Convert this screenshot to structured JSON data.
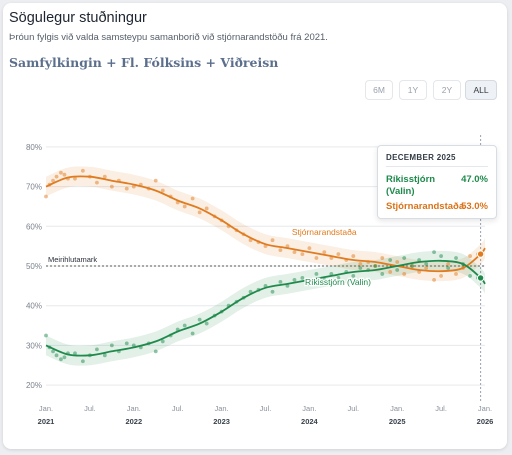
{
  "header": {
    "title": "Sögulegur stuðningur",
    "subtitle": "Þróun fylgis við valda samsteypu samanborið við stjórnarandstöðu frá 2021.",
    "coalition": "Samfylkingin + Fl. Fólksins + Viðreisn"
  },
  "range_buttons": [
    {
      "label": "6M",
      "active": false
    },
    {
      "label": "1Y",
      "active": false
    },
    {
      "label": "2Y",
      "active": false
    },
    {
      "label": "ALL",
      "active": true
    }
  ],
  "tooltip": {
    "date": "DECEMBER 2025",
    "government_label": "Ríkisstjórn (Valin)",
    "government_value": "47.0%",
    "opposition_label": "Stjórnarandstaða",
    "opposition_value": "53.0%"
  },
  "colors": {
    "government": "#1f8a4c",
    "opposition": "#e07b1f",
    "grid": "#e6e9ed",
    "majority_line": "#555555"
  },
  "chart_data": {
    "type": "line",
    "ylim": [
      17,
      83
    ],
    "xlim": [
      2021.0,
      2026.0
    ],
    "grid": true,
    "y_ticks": [
      "20%",
      "30%",
      "40%",
      "50%",
      "60%",
      "70%",
      "80%"
    ],
    "y_tick_values": [
      20,
      30,
      40,
      50,
      60,
      70,
      80
    ],
    "x_ticks": [
      {
        "label": "Jan.",
        "year": "2021",
        "x": 2021.0
      },
      {
        "label": "Jul.",
        "year": "",
        "x": 2021.5
      },
      {
        "label": "Jan.",
        "year": "2022",
        "x": 2022.0
      },
      {
        "label": "Jul.",
        "year": "",
        "x": 2022.5
      },
      {
        "label": "Jan.",
        "year": "2023",
        "x": 2023.0
      },
      {
        "label": "Jul.",
        "year": "",
        "x": 2023.5
      },
      {
        "label": "Jan.",
        "year": "2024",
        "x": 2024.0
      },
      {
        "label": "Jul.",
        "year": "",
        "x": 2024.5
      },
      {
        "label": "Jan.",
        "year": "2025",
        "x": 2025.0
      },
      {
        "label": "Jul.",
        "year": "",
        "x": 2025.5
      },
      {
        "label": "Jan.",
        "year": "2026",
        "x": 2026.0
      }
    ],
    "reference_line": {
      "y": 50,
      "label": "Meirihlutamark"
    },
    "highlight_x": 2025.95,
    "band_halfwidth": 2.5,
    "series": [
      {
        "name": "Stjórnarandstaða",
        "color": "#e07b1f",
        "x": [
          2021.0,
          2021.25,
          2021.5,
          2021.75,
          2022.0,
          2022.25,
          2022.5,
          2022.75,
          2023.0,
          2023.25,
          2023.5,
          2023.75,
          2024.0,
          2024.25,
          2024.5,
          2024.75,
          2025.0,
          2025.25,
          2025.5,
          2025.75,
          2025.95,
          2026.0
        ],
        "y": [
          70.0,
          72.3,
          72.5,
          71.5,
          70.5,
          69.0,
          66.5,
          64.5,
          61.5,
          58.0,
          55.5,
          54.5,
          53.5,
          52.5,
          51.5,
          51.0,
          50.0,
          49.0,
          48.7,
          49.5,
          53.0,
          54.5
        ],
        "points_x": [
          2021.0,
          2021.04,
          2021.08,
          2021.12,
          2021.17,
          2021.21,
          2021.25,
          2021.33,
          2021.42,
          2021.5,
          2021.58,
          2021.67,
          2021.75,
          2021.83,
          2021.92,
          2022.0,
          2022.08,
          2022.17,
          2022.25,
          2022.33,
          2022.42,
          2022.5,
          2022.58,
          2022.67,
          2022.75,
          2022.83,
          2022.92,
          2023.0,
          2023.08,
          2023.17,
          2023.25,
          2023.33,
          2023.42,
          2023.5,
          2023.58,
          2023.67,
          2023.75,
          2023.83,
          2023.92,
          2024.0,
          2024.08,
          2024.17,
          2024.25,
          2024.33,
          2024.42,
          2024.5,
          2024.58,
          2024.67,
          2024.75,
          2024.83,
          2024.92,
          2025.0,
          2025.08,
          2025.17,
          2025.25,
          2025.33,
          2025.42,
          2025.5,
          2025.58,
          2025.67,
          2025.75,
          2025.83,
          2025.92
        ],
        "points_y": [
          67.5,
          70.5,
          71.5,
          72.5,
          73.5,
          73.0,
          72.0,
          72.0,
          74.0,
          72.5,
          71.0,
          72.5,
          70.0,
          71.5,
          69.5,
          70.0,
          70.5,
          69.5,
          71.5,
          69.0,
          67.5,
          66.0,
          65.0,
          67.0,
          63.5,
          64.5,
          62.5,
          61.5,
          60.0,
          59.0,
          58.0,
          56.5,
          56.0,
          55.0,
          56.5,
          54.0,
          55.0,
          53.5,
          53.0,
          54.5,
          52.0,
          53.5,
          52.0,
          53.0,
          51.5,
          52.5,
          50.5,
          51.0,
          50.0,
          52.0,
          48.5,
          51.0,
          48.0,
          50.0,
          48.5,
          49.5,
          46.5,
          47.5,
          50.5,
          48.0,
          49.5,
          52.5,
          53.0
        ]
      },
      {
        "name": "Ríkisstjórn (Valin)",
        "color": "#1f8a4c",
        "x": [
          2021.0,
          2021.25,
          2021.5,
          2021.75,
          2022.0,
          2022.25,
          2022.5,
          2022.75,
          2023.0,
          2023.25,
          2023.5,
          2023.75,
          2024.0,
          2024.25,
          2024.5,
          2024.75,
          2025.0,
          2025.25,
          2025.5,
          2025.75,
          2025.95,
          2026.0
        ],
        "y": [
          30.0,
          27.7,
          27.5,
          28.5,
          29.5,
          31.0,
          33.5,
          35.5,
          38.5,
          42.0,
          44.5,
          45.5,
          46.5,
          47.5,
          48.5,
          49.0,
          50.0,
          51.0,
          51.3,
          50.5,
          47.0,
          45.5
        ],
        "points_x": [
          2021.0,
          2021.04,
          2021.08,
          2021.12,
          2021.17,
          2021.21,
          2021.25,
          2021.33,
          2021.42,
          2021.5,
          2021.58,
          2021.67,
          2021.75,
          2021.83,
          2021.92,
          2022.0,
          2022.08,
          2022.17,
          2022.25,
          2022.33,
          2022.42,
          2022.5,
          2022.58,
          2022.67,
          2022.75,
          2022.83,
          2022.92,
          2023.0,
          2023.08,
          2023.17,
          2023.25,
          2023.33,
          2023.42,
          2023.5,
          2023.58,
          2023.67,
          2023.75,
          2023.83,
          2023.92,
          2024.0,
          2024.08,
          2024.17,
          2024.25,
          2024.33,
          2024.42,
          2024.5,
          2024.58,
          2024.67,
          2024.75,
          2024.83,
          2024.92,
          2025.0,
          2025.08,
          2025.17,
          2025.25,
          2025.33,
          2025.42,
          2025.5,
          2025.58,
          2025.67,
          2025.75,
          2025.83,
          2025.92
        ],
        "points_y": [
          32.5,
          29.5,
          28.5,
          27.5,
          26.5,
          27.0,
          28.0,
          28.0,
          26.0,
          27.5,
          29.0,
          27.5,
          30.0,
          28.5,
          30.5,
          30.0,
          29.5,
          30.5,
          28.5,
          31.0,
          32.5,
          34.0,
          35.0,
          33.0,
          36.5,
          35.5,
          37.5,
          38.5,
          40.0,
          41.0,
          42.0,
          43.5,
          44.0,
          45.0,
          43.5,
          46.0,
          45.0,
          46.5,
          47.0,
          45.5,
          48.0,
          46.5,
          48.0,
          47.0,
          48.5,
          47.5,
          49.5,
          49.0,
          50.0,
          48.0,
          51.5,
          49.0,
          52.0,
          50.0,
          51.5,
          50.5,
          53.5,
          52.5,
          49.5,
          52.0,
          50.5,
          47.5,
          47.0
        ]
      }
    ],
    "series_labels": [
      {
        "text": "Stjórnarandstaða",
        "x": 2023.8,
        "y": 57.8
      },
      {
        "text": "Ríkisstjórn (Valin)",
        "x": 2023.95,
        "y": 45.2
      }
    ]
  }
}
